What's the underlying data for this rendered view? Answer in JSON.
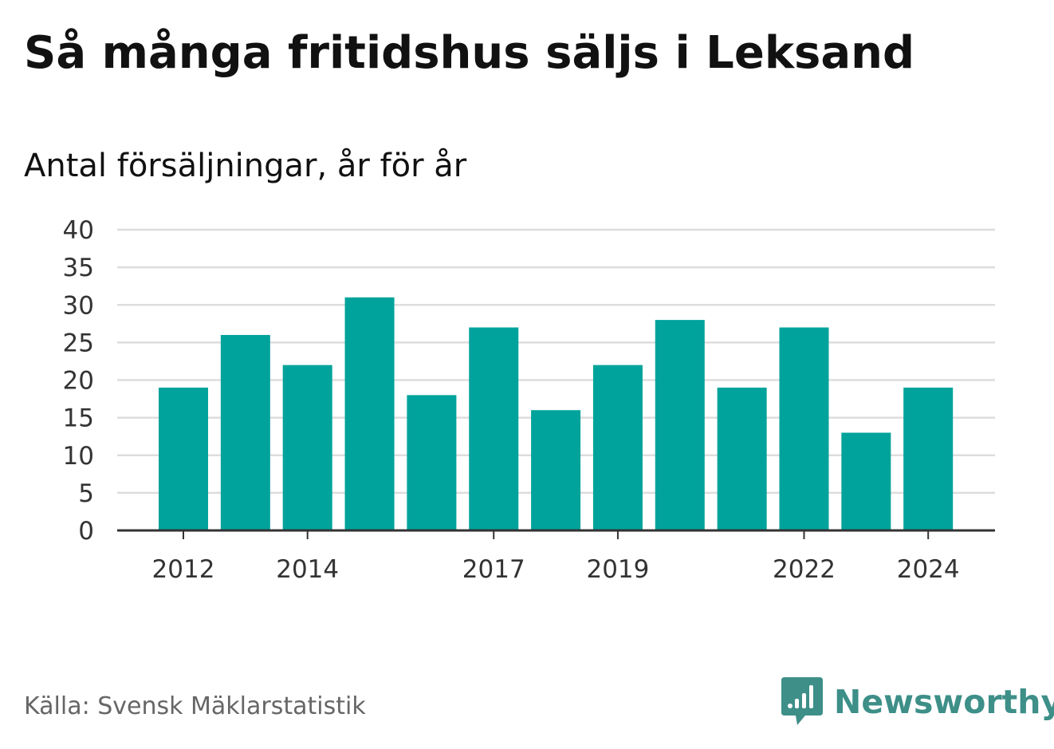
{
  "header": {
    "title": "Så många fritidshus säljs i Leksand",
    "subtitle": "Antal försäljningar, år för år"
  },
  "footer": {
    "source": "Källa: Svensk Mäklarstatistik",
    "brand": "Newsworthy"
  },
  "colors": {
    "bar": "#00a39b",
    "brand": "#3d8f88",
    "grid": "#dddddd",
    "axis": "#333333"
  },
  "chart_data": {
    "type": "bar",
    "categories": [
      "2012",
      "2013",
      "2014",
      "2015",
      "2016",
      "2017",
      "2018",
      "2019",
      "2020",
      "2021",
      "2022",
      "2023",
      "2024"
    ],
    "values": [
      19,
      26,
      22,
      31,
      18,
      27,
      16,
      22,
      28,
      19,
      27,
      13,
      19
    ],
    "x_tick_labels": [
      "2012",
      "2014",
      "2017",
      "2019",
      "2022",
      "2024"
    ],
    "y_ticks": [
      0,
      5,
      10,
      15,
      20,
      25,
      30,
      35,
      40
    ],
    "ylim": [
      0,
      40
    ],
    "grid": true,
    "legend": "none"
  }
}
